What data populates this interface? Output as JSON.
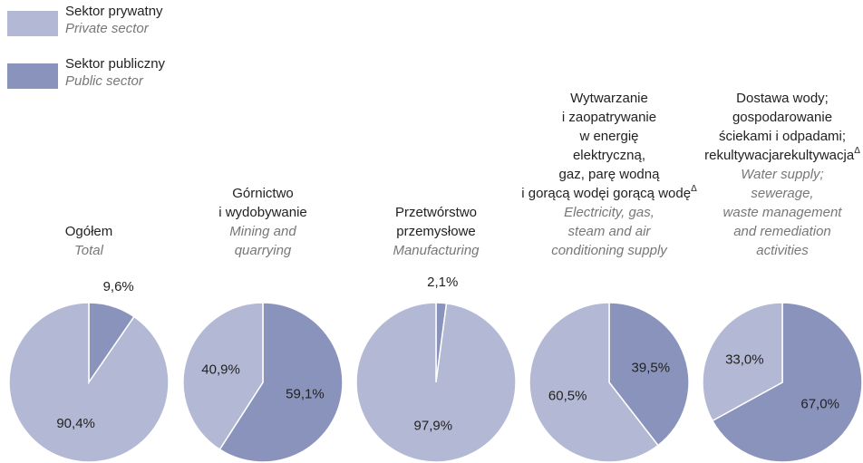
{
  "legend": [
    {
      "name": "Sektor prywatny",
      "name_en": "Private sector",
      "color": "#b3b8d4"
    },
    {
      "name": "Sektor publiczny",
      "name_en": "Public sector",
      "color": "#8a93bb"
    }
  ],
  "chart_data": [
    {
      "type": "pie",
      "title": [
        "Ogółem"
      ],
      "subtitle": [
        "Total"
      ],
      "values": [
        90.4,
        9.6
      ],
      "value_labels": [
        "90,4%",
        "9,6%"
      ]
    },
    {
      "type": "pie",
      "title": [
        "Górnictwo",
        "i wydobywanie"
      ],
      "subtitle": [
        "Mining and",
        "quarrying"
      ],
      "values": [
        40.9,
        59.1
      ],
      "value_labels": [
        "40,9%",
        "59,1%"
      ]
    },
    {
      "type": "pie",
      "title": [
        "Przetwórstwo",
        "przemysłowe"
      ],
      "subtitle": [
        "Manufacturing"
      ],
      "values": [
        97.9,
        2.1
      ],
      "value_labels": [
        "97,9%",
        "2,1%"
      ]
    },
    {
      "type": "pie",
      "title": [
        "Wytwarzanie",
        "i zaopatrywanie",
        "w energię",
        "elektryczną,",
        "gaz, parę wodną",
        "i gorącą wodę"
      ],
      "title_note": "Δ",
      "subtitle": [
        "Electricity, gas,",
        "steam and air",
        "conditioning supply"
      ],
      "values": [
        60.5,
        39.5
      ],
      "value_labels": [
        "60,5%",
        "39,5%"
      ]
    },
    {
      "type": "pie",
      "title": [
        "Dostawa wody;",
        "gospodarowanie",
        "ściekami i odpadami;",
        "rekultywacja"
      ],
      "title_note": "Δ",
      "subtitle": [
        "Water supply;",
        "sewerage,",
        "waste management",
        "and remediation",
        "activities"
      ],
      "values": [
        33.0,
        67.0
      ],
      "value_labels": [
        "33,0%",
        "67,0%"
      ]
    }
  ]
}
